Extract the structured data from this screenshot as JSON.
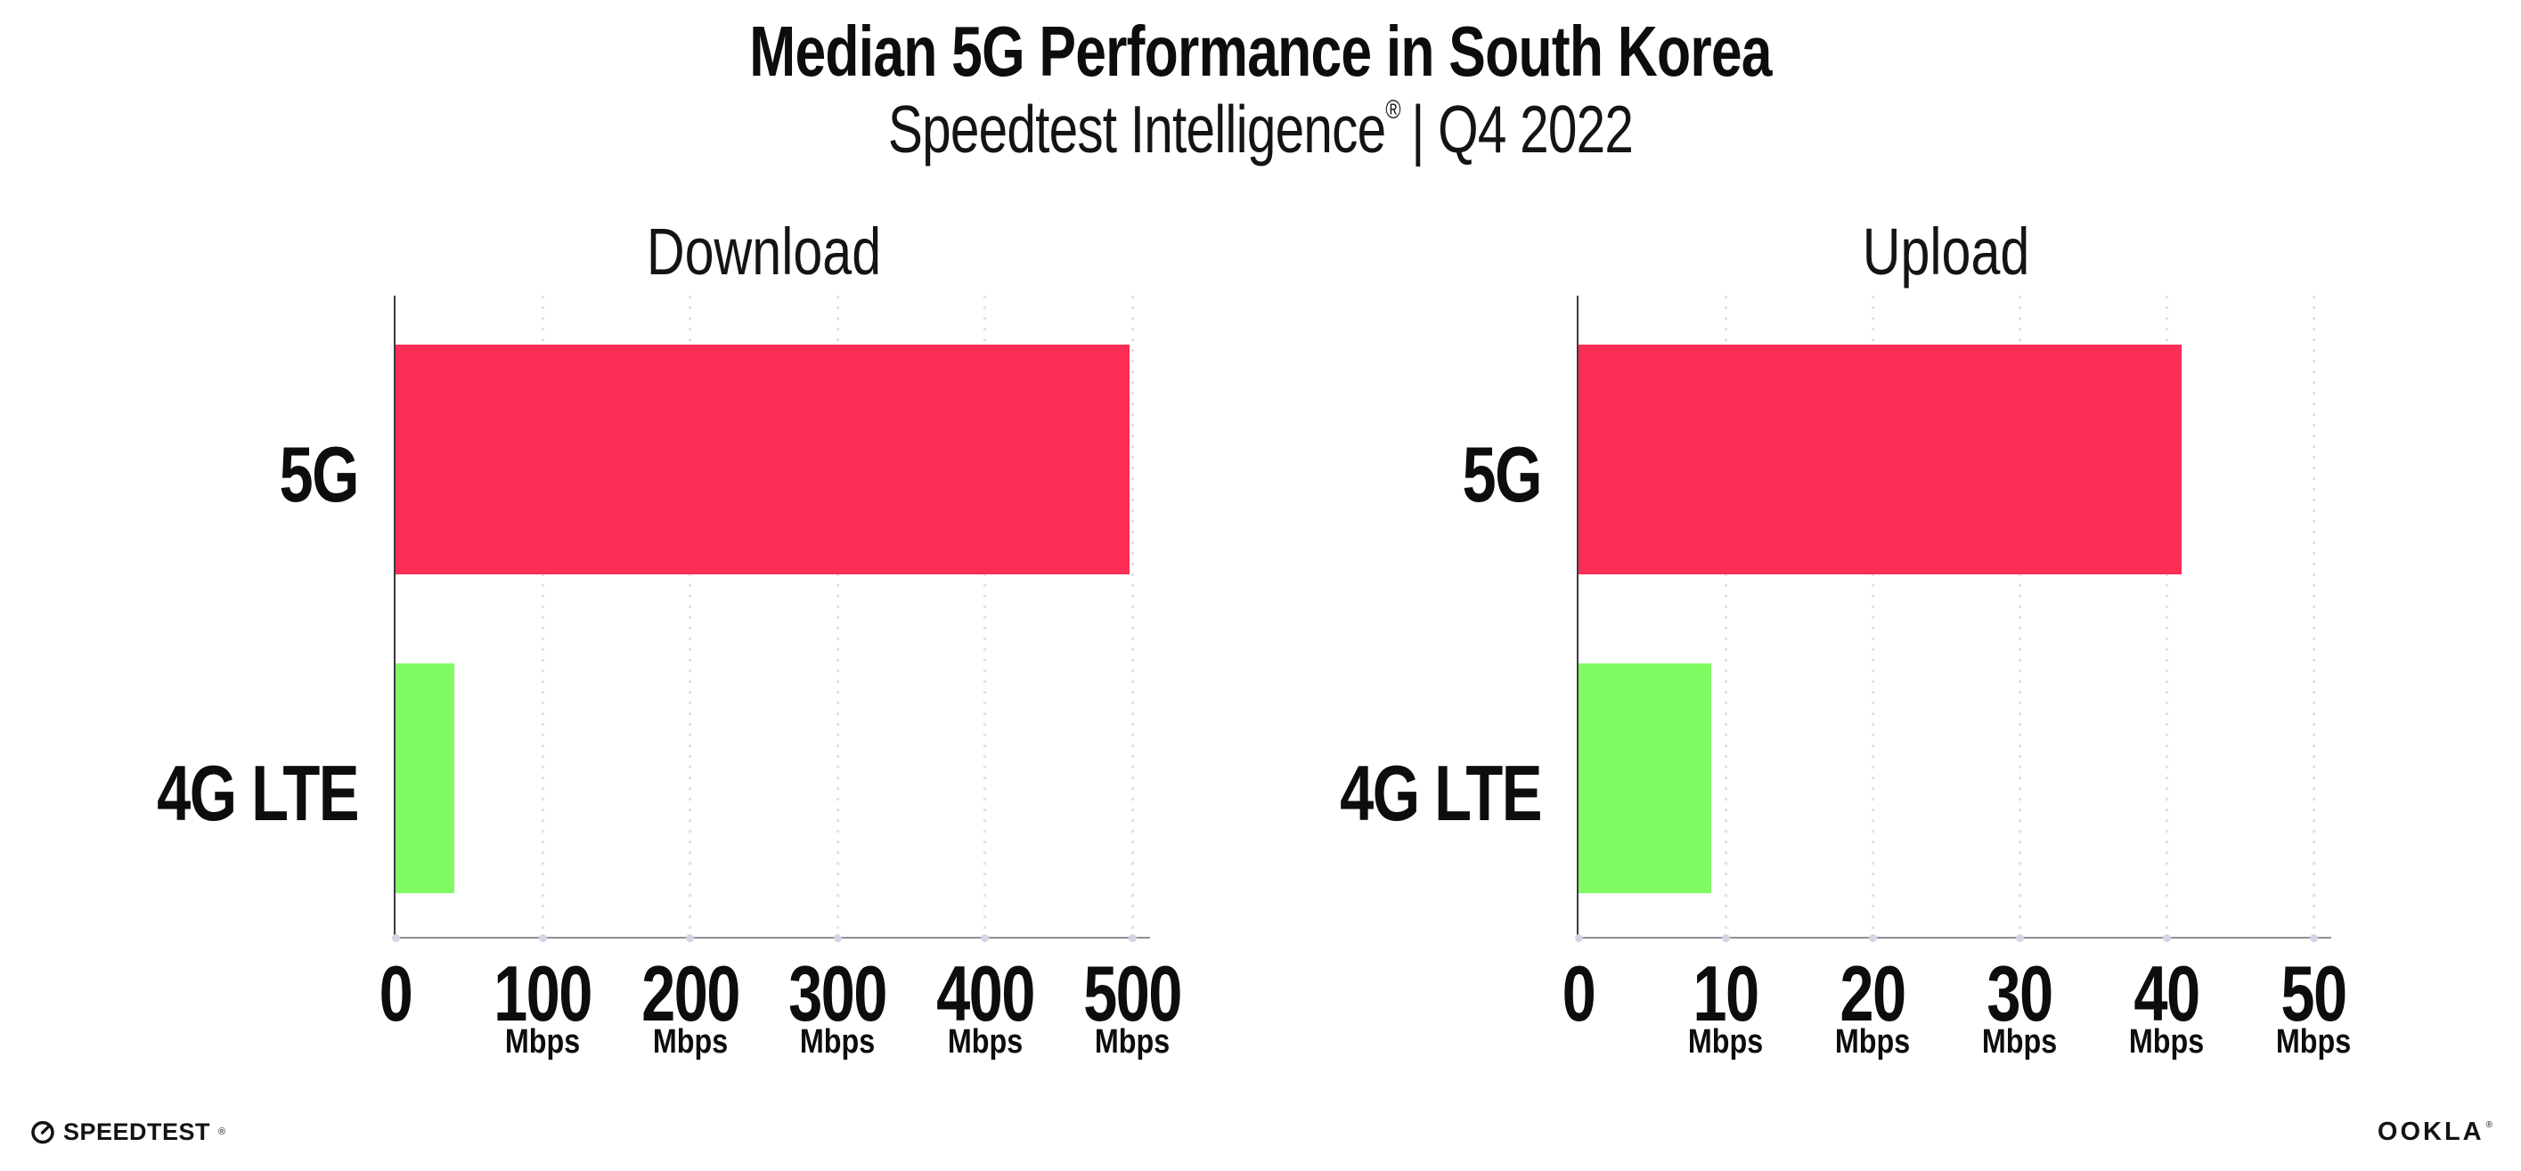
{
  "page": {
    "title": "Median 5G Performance in South Korea",
    "subtitle_brand": "Speedtest Intelligence",
    "subtitle_reg": "®",
    "subtitle_rest": "| Q4 2022"
  },
  "chart_data": [
    {
      "type": "bar",
      "orientation": "horizontal",
      "title": "Download",
      "categories": [
        "5G",
        "4G LTE"
      ],
      "values": [
        498,
        40
      ],
      "unit": "Mbps",
      "xlabel": "",
      "ylabel": "",
      "xlim": [
        0,
        500
      ],
      "ticks": [
        "0",
        "100",
        "200",
        "300",
        "400",
        "500"
      ],
      "bar_colors": [
        "#FD2E56",
        "#7FFA62"
      ],
      "grid": "vertical-dotted",
      "legend": "none"
    },
    {
      "type": "bar",
      "orientation": "horizontal",
      "title": "Upload",
      "categories": [
        "5G",
        "4G LTE"
      ],
      "values": [
        41,
        9
      ],
      "unit": "Mbps",
      "xlabel": "",
      "ylabel": "",
      "xlim": [
        0,
        50
      ],
      "ticks": [
        "0",
        "10",
        "20",
        "30",
        "40",
        "50"
      ],
      "bar_colors": [
        "#FD2E56",
        "#7FFA62"
      ],
      "grid": "vertical-dotted",
      "legend": "none"
    }
  ],
  "footer": {
    "speedtest_label": "SPEEDTEST",
    "speedtest_mark": "®",
    "ookla_label": "OOKLA",
    "ookla_mark": "®"
  },
  "colors": {
    "bar_5g": "#FD2E56",
    "bar_4g_lte": "#7FFA62",
    "gridline": "#E3E1EC",
    "x_axis_line": "#8F8F94",
    "y_axis_line": "#3D3A45",
    "axis_tick_dot": "#D6D3E6",
    "text": "#0D0D0D",
    "background": "#FFFFFF"
  }
}
